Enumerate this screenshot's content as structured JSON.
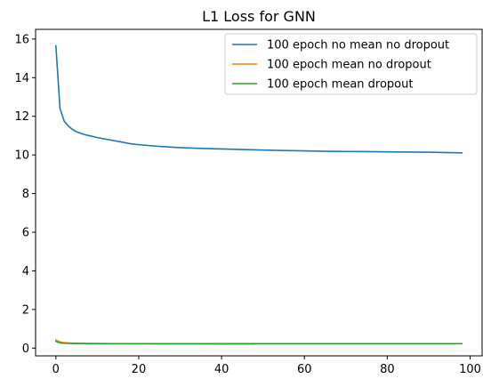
{
  "chart_data": {
    "type": "line",
    "title": "L1 Loss for GNN",
    "xlabel": "",
    "ylabel": "",
    "xlim": [
      -4.9,
      102.9
    ],
    "ylim": [
      -0.4,
      16.5
    ],
    "xticks": [
      0,
      20,
      40,
      60,
      80,
      100
    ],
    "yticks": [
      0,
      2,
      4,
      6,
      8,
      10,
      12,
      14,
      16
    ],
    "grid": false,
    "legend_position": "top-right",
    "series": [
      {
        "name": "100 epoch no mean no dropout",
        "color": "#1f77b4",
        "x": [
          0,
          1,
          2,
          3,
          4,
          5,
          6,
          7,
          8,
          10,
          12,
          14,
          16,
          18,
          20,
          25,
          30,
          35,
          40,
          45,
          50,
          55,
          60,
          65,
          70,
          75,
          80,
          85,
          90,
          95,
          98
        ],
        "y": [
          15.65,
          12.4,
          11.75,
          11.5,
          11.32,
          11.2,
          11.12,
          11.05,
          11.0,
          10.9,
          10.82,
          10.74,
          10.66,
          10.58,
          10.53,
          10.44,
          10.38,
          10.34,
          10.31,
          10.28,
          10.25,
          10.23,
          10.21,
          10.19,
          10.18,
          10.17,
          10.16,
          10.15,
          10.14,
          10.12,
          10.11
        ]
      },
      {
        "name": "100 epoch mean no dropout",
        "color": "#ff7f0e",
        "x": [
          0,
          1,
          2,
          4,
          6,
          8,
          10,
          15,
          20,
          25,
          30,
          35,
          40,
          45,
          48
        ],
        "y": [
          0.42,
          0.32,
          0.28,
          0.26,
          0.25,
          0.24,
          0.24,
          0.23,
          0.23,
          0.22,
          0.22,
          0.22,
          0.21,
          0.21,
          0.21
        ]
      },
      {
        "name": "100 epoch mean dropout",
        "color": "#2ca02c",
        "x": [
          0,
          1,
          2,
          4,
          6,
          8,
          10,
          15,
          20,
          25,
          30,
          35,
          40,
          45,
          50,
          55,
          60,
          65,
          70,
          75,
          80,
          85,
          90,
          95,
          98
        ],
        "y": [
          0.35,
          0.27,
          0.25,
          0.24,
          0.24,
          0.23,
          0.23,
          0.23,
          0.23,
          0.23,
          0.23,
          0.23,
          0.23,
          0.23,
          0.23,
          0.23,
          0.23,
          0.23,
          0.23,
          0.23,
          0.23,
          0.23,
          0.23,
          0.23,
          0.23
        ]
      }
    ]
  }
}
